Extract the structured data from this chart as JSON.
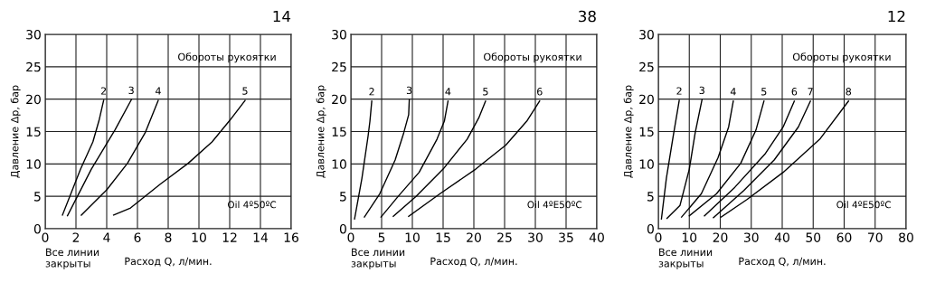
{
  "chart_data": [
    {
      "type": "line",
      "title": "14",
      "xlabel": "Расход Q, л/мин.",
      "ylabel": "Давление Δp, бар",
      "annotations": [
        "Обороты рукоятки",
        "Oil 4º50ºC",
        "Все линии\nзакрыты"
      ],
      "xlim": [
        0,
        16
      ],
      "xticks": [
        0,
        2,
        4,
        6,
        8,
        10,
        12,
        14,
        16
      ],
      "ylim": [
        0,
        30
      ],
      "yticks": [
        0,
        5,
        10,
        15,
        20,
        25,
        30
      ],
      "grid": true,
      "legend": false,
      "series": [
        {
          "name": "2",
          "color": "#000000",
          "x": [
            1.12,
            2.3,
            3.1,
            3.5,
            3.8
          ],
          "values": [
            2.1,
            9.2,
            13.4,
            16.7,
            19.8
          ]
        },
        {
          "name": "3",
          "color": "#000000",
          "x": [
            1.45,
            3.0,
            4.55,
            5.6
          ],
          "values": [
            2.0,
            9.2,
            15.3,
            19.9
          ]
        },
        {
          "name": "4",
          "color": "#000000",
          "x": [
            2.35,
            4.0,
            5.35,
            6.5,
            7.35
          ],
          "values": [
            2.1,
            6.0,
            10.1,
            14.8,
            19.8
          ]
        },
        {
          "name": "5",
          "color": "#000000",
          "x": [
            4.45,
            5.55,
            7.5,
            9.3,
            10.85,
            12.0,
            13.0
          ],
          "values": [
            2.1,
            3.2,
            6.9,
            10.1,
            13.4,
            16.7,
            19.8
          ]
        }
      ]
    },
    {
      "type": "line",
      "title": "38",
      "xlabel": "Расход Q, л/мин.",
      "ylabel": "Давление Δp, бар",
      "annotations": [
        "Обороты рукоятки",
        "Oil 4ºE50ºC",
        "Все линии\nзакрыты"
      ],
      "xlim": [
        0,
        40
      ],
      "xticks": [
        0,
        5,
        10,
        15,
        20,
        25,
        30,
        35,
        40
      ],
      "ylim": [
        0,
        30
      ],
      "yticks": [
        0,
        5,
        10,
        15,
        20,
        25,
        30
      ],
      "grid": true,
      "legend": false,
      "series": [
        {
          "name": "2",
          "color": "#000000",
          "x": [
            0.6,
            1.8,
            2.8,
            3.1,
            3.4
          ],
          "values": [
            1.5,
            7.8,
            14.3,
            16.6,
            19.7
          ]
        },
        {
          "name": "3",
          "color": "#000000",
          "x": [
            2.2,
            4.7,
            7.2,
            8.6,
            9.4,
            9.5
          ],
          "values": [
            1.8,
            5.4,
            10.6,
            14.8,
            17.6,
            19.9
          ]
        },
        {
          "name": "4",
          "color": "#000000",
          "x": [
            4.9,
            7.7,
            11.1,
            14.0,
            15.2,
            15.8
          ],
          "values": [
            1.8,
            5.0,
            8.7,
            13.8,
            16.6,
            19.7
          ]
        },
        {
          "name": "5",
          "color": "#000000",
          "x": [
            6.9,
            10.6,
            15.0,
            18.9,
            20.8,
            21.9
          ],
          "values": [
            1.9,
            5.0,
            9.2,
            13.8,
            17.1,
            19.7
          ]
        },
        {
          "name": "6",
          "color": "#000000",
          "x": [
            9.4,
            14.5,
            20.3,
            25.2,
            28.6,
            30.7
          ],
          "values": [
            1.9,
            5.4,
            9.2,
            12.9,
            16.6,
            19.7
          ]
        }
      ]
    },
    {
      "type": "line",
      "title": "12",
      "xlabel": "Расход Q, л/мин.",
      "ylabel": "Давление Δp, бар",
      "annotations": [
        "Обороты рукоятки",
        "Oil 4ºE50ºC",
        "Все линии\nзакрыты"
      ],
      "xlim": [
        0,
        80
      ],
      "xticks": [
        0,
        10,
        20,
        30,
        40,
        50,
        60,
        70,
        80
      ],
      "ylim": [
        0,
        30
      ],
      "yticks": [
        0,
        5,
        10,
        15,
        20,
        25,
        30
      ],
      "grid": true,
      "legend": false,
      "series": [
        {
          "name": "2",
          "color": "#000000",
          "x": [
            1.0,
            2.6,
            4.8,
            6.75
          ],
          "values": [
            1.5,
            7.8,
            14.3,
            19.8
          ]
        },
        {
          "name": "3",
          "color": "#000000",
          "x": [
            2.8,
            7.0,
            10.0,
            11.9,
            14.1
          ],
          "values": [
            1.6,
            3.6,
            9.2,
            14.8,
            19.9
          ]
        },
        {
          "name": "4",
          "color": "#000000",
          "x": [
            7.5,
            13.9,
            19.3,
            22.7,
            24.2
          ],
          "values": [
            1.8,
            5.4,
            11.0,
            15.7,
            19.7
          ]
        },
        {
          "name": "5",
          "color": "#000000",
          "x": [
            10.0,
            18.8,
            26.6,
            31.5,
            34.1
          ],
          "values": [
            2.0,
            5.4,
            10.1,
            15.2,
            19.7
          ]
        },
        {
          "name": "6",
          "color": "#000000",
          "x": [
            14.9,
            24.7,
            34.4,
            40.3,
            43.9
          ],
          "values": [
            2.0,
            6.4,
            11.5,
            15.7,
            19.7
          ]
        },
        {
          "name": "7",
          "color": "#000000",
          "x": [
            17.8,
            27.6,
            37.4,
            45.2,
            49.1
          ],
          "values": [
            1.7,
            5.9,
            10.6,
            15.7,
            19.7
          ]
        },
        {
          "name": "8",
          "color": "#000000",
          "x": [
            20.3,
            28.6,
            40.3,
            52.1,
            61.4
          ],
          "values": [
            1.8,
            4.5,
            8.7,
            13.8,
            19.7
          ]
        }
      ]
    }
  ]
}
